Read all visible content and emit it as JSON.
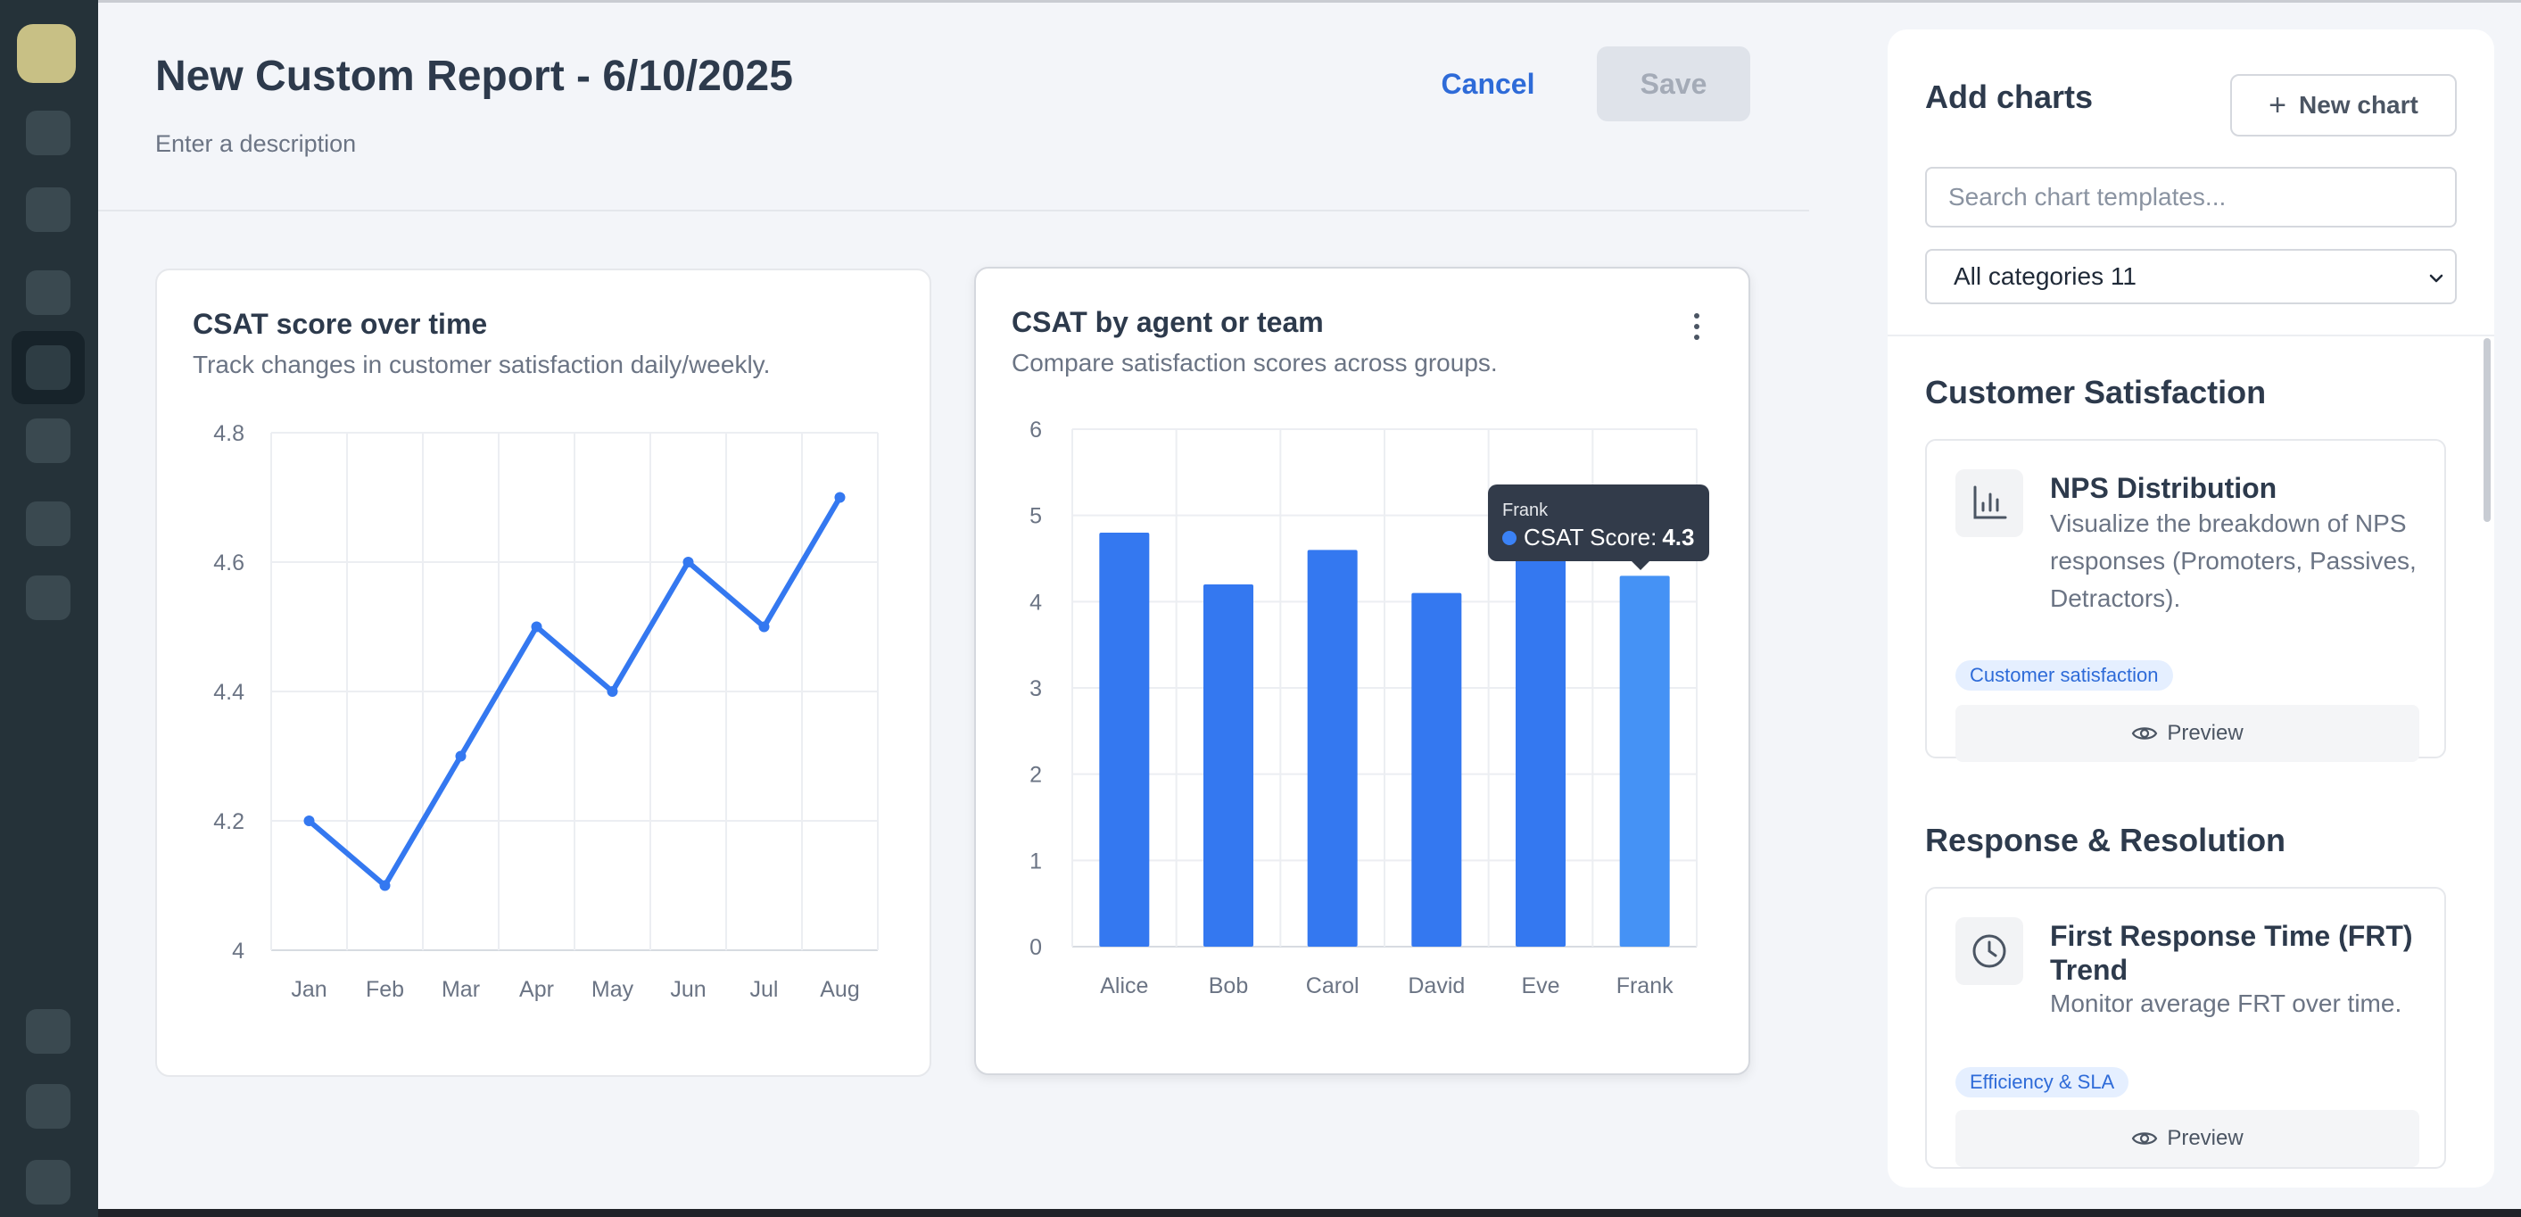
{
  "header": {
    "title": "New Custom Report - 6/10/2025",
    "description_placeholder": "Enter a description",
    "cancel_label": "Cancel",
    "save_label": "Save"
  },
  "cards": [
    {
      "title": "CSAT score over time",
      "subtitle": "Track changes in customer satisfaction daily/weekly."
    },
    {
      "title": "CSAT by agent or team",
      "subtitle": "Compare satisfaction scores across groups."
    }
  ],
  "tooltip": {
    "category": "Frank",
    "series_label": "CSAT Score:",
    "value": "4.3"
  },
  "panel": {
    "title": "Add charts",
    "new_chart_label": "New chart",
    "search_placeholder": "Search chart templates...",
    "category_select": "All categories 11",
    "sections": [
      {
        "title": "Customer Satisfaction",
        "template": {
          "name": "NPS Distribution",
          "description": "Visualize the breakdown of NPS responses (Promoters, Passives, Detractors).",
          "tag": "Customer satisfaction",
          "preview_label": "Preview",
          "icon": "bar-chart-icon"
        }
      },
      {
        "title": "Response & Resolution",
        "template": {
          "name": "First Response Time (FRT) Trend",
          "description": "Monitor average FRT over time.",
          "tag": "Efficiency & SLA",
          "preview_label": "Preview",
          "icon": "clock-icon"
        }
      }
    ]
  },
  "colors": {
    "accent": "#2e6bd8",
    "series": "#3478f0",
    "highlight_bar": "#4592f5",
    "rail": "#253239"
  },
  "chart_data": [
    {
      "type": "line",
      "x": [
        "Jan",
        "Feb",
        "Mar",
        "Apr",
        "May",
        "Jun",
        "Jul",
        "Aug"
      ],
      "values": [
        4.2,
        4.1,
        4.3,
        4.5,
        4.4,
        4.6,
        4.5,
        4.7
      ],
      "ylim": [
        4,
        4.8
      ],
      "yticks": [
        "4",
        "4.2",
        "4.4",
        "4.6",
        "4.8"
      ],
      "grid": true
    },
    {
      "type": "bar",
      "categories": [
        "Alice",
        "Bob",
        "Carol",
        "David",
        "Eve",
        "Frank"
      ],
      "series": [
        {
          "name": "CSAT Score",
          "values": [
            4.8,
            4.2,
            4.6,
            4.1,
            4.5,
            4.3
          ]
        }
      ],
      "ylim": [
        0,
        6
      ],
      "yticks": [
        "0",
        "1",
        "2",
        "3",
        "4",
        "5",
        "6"
      ],
      "grid": true,
      "highlighted_category": "Frank"
    }
  ]
}
